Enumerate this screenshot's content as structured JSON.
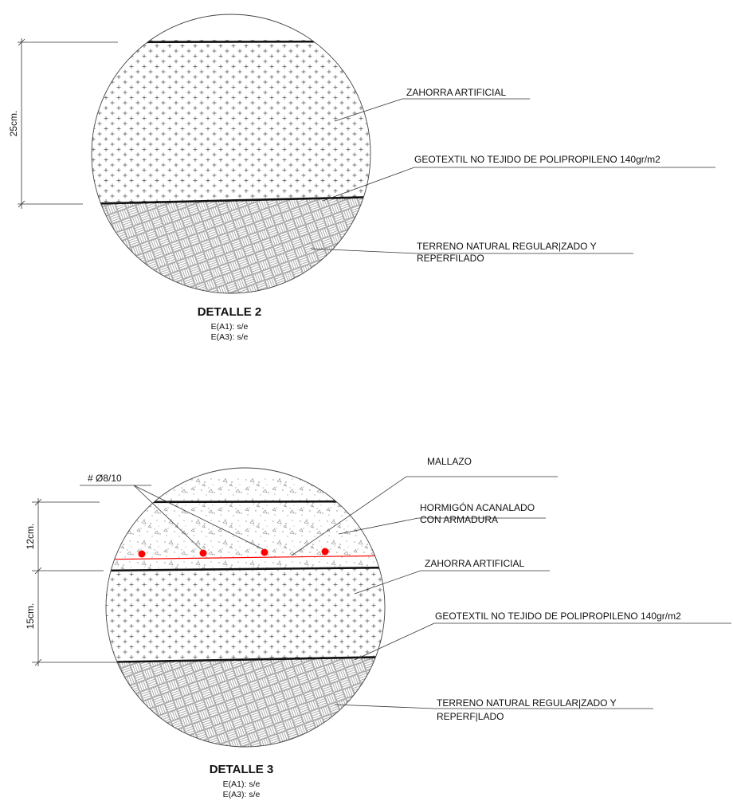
{
  "detail2": {
    "title": "DETALLE 2",
    "scale_a1": "E(A1): s/e",
    "scale_a3": "E(A3): s/e",
    "dim_total": "25cm.",
    "labels": {
      "zahorra": "ZAHORRA ARTIFICIAL",
      "geotextil": "GEOTEXTIL NO TEJIDO DE POLIPROPILENO 140gr/m2",
      "terreno_1": "TERRENO NATURAL REGULAR|ZADO Y",
      "terreno_2": "REPERFILADO"
    }
  },
  "detail3": {
    "title": "DETALLE 3",
    "scale_a1": "E(A1): s/e",
    "scale_a3": "E(A3): s/e",
    "dim_top": "12cm.",
    "dim_bottom": "15cm.",
    "rebar_label": "# Ø8/10",
    "labels": {
      "mallazo": "MALLAZO",
      "hormigon_1": "HORMIGÓN ACANALADO",
      "hormigon_2": "CON ARMADURA",
      "zahorra": "ZAHORRA ARTIFICIAL",
      "geotextil": "GEOTEXTIL NO TEJIDO DE POLIPROPILENO 140gr/m2",
      "terreno_1": "TERRENO NATURAL REGULAR|ZADO Y",
      "terreno_2": "REPERF|LADO"
    }
  },
  "colors": {
    "rebar": "#ff0000",
    "line": "#111111",
    "hatch": "#555555"
  }
}
